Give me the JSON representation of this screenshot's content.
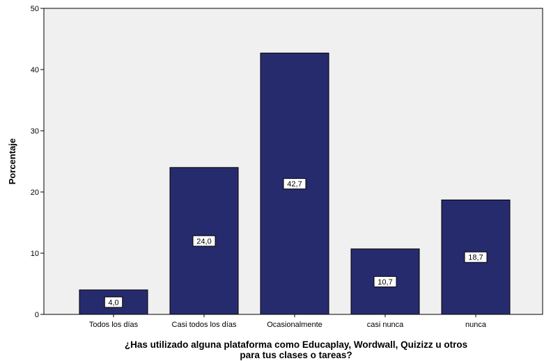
{
  "chart_data": {
    "type": "bar",
    "categories": [
      "Todos los días",
      "Casi todos los días",
      "Ocasionalmente",
      "casi nunca",
      "nunca"
    ],
    "values": [
      4.0,
      24.0,
      42.7,
      10.7,
      18.7
    ],
    "data_labels": [
      "4,0",
      "24,0",
      "42,7",
      "10,7",
      "18,7"
    ],
    "title": "",
    "xlabel_lines": [
      "¿Has utilizado alguna plataforma como Educaplay, Wordwall, Quizizz u otros",
      "para tus clases o tareas?"
    ],
    "ylabel": "Porcentaje",
    "ylim": [
      0,
      50
    ],
    "yticks": [
      0,
      10,
      20,
      30,
      40,
      50
    ],
    "grid": false,
    "legend": "none",
    "colors": {
      "bar_fill": "#262b6e",
      "bar_stroke": "#000000",
      "plot_background": "#f0f0f0"
    }
  }
}
